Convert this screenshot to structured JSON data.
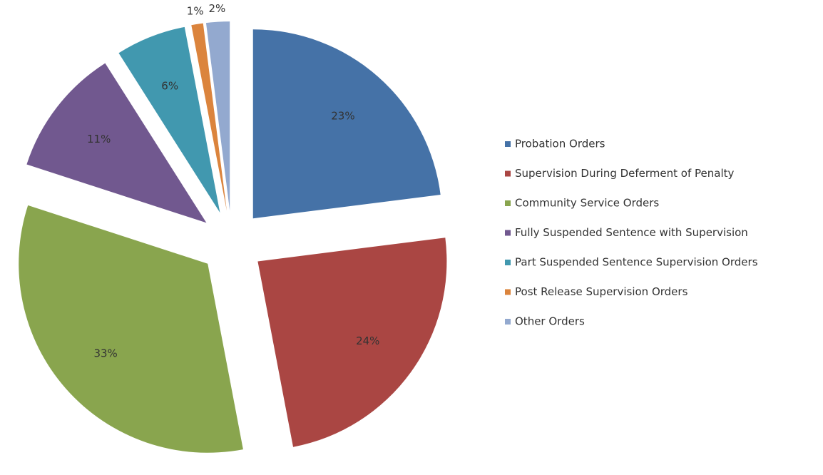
{
  "chart_data": {
    "type": "pie",
    "categories": [
      "Probation Orders",
      "Supervision During Deferment of Penalty",
      "Community Service Orders",
      "Fully Suspended Sentence with Supervision",
      "Part Suspended Sentence Supervision Orders",
      "Post Release Supervision Orders",
      "Other Orders"
    ],
    "values": [
      23,
      24,
      33,
      11,
      6,
      1,
      2
    ],
    "value_labels": [
      "23%",
      "24%",
      "33%",
      "11%",
      "6%",
      "1%",
      "2%"
    ],
    "colors": [
      "#4572a7",
      "#aa4643",
      "#89a54e",
      "#71588f",
      "#4198af",
      "#db843d",
      "#93a9cf"
    ],
    "legend": "right"
  }
}
